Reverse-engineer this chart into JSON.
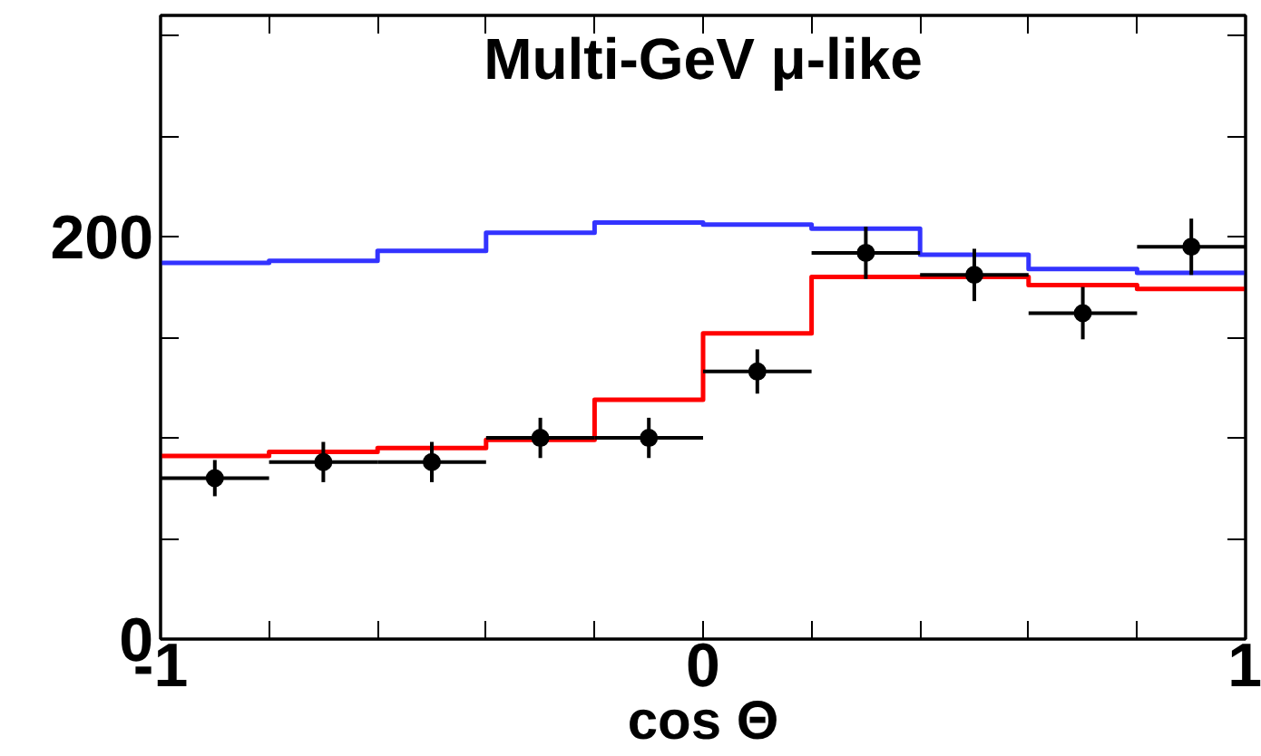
{
  "chart_data": {
    "type": "step",
    "title": "Multi-GeV μ-like",
    "xlabel": "cos Θ",
    "x": [
      -0.9,
      -0.7,
      -0.5,
      -0.3,
      -0.1,
      0.1,
      0.3,
      0.5,
      0.7,
      0.9
    ],
    "series": [
      {
        "color": "#3333ff",
        "x": [
          -1,
          -0.8,
          -0.6,
          -0.4,
          -0.2,
          0,
          0.2,
          0.4,
          0.6,
          0.8,
          1
        ],
        "values": [
          187,
          188,
          193,
          202,
          207,
          206,
          204,
          191,
          184,
          182,
          182
        ]
      },
      {
        "color": "#ff0000",
        "x": [
          -1,
          -0.8,
          -0.6,
          -0.4,
          -0.2,
          0,
          0.2,
          0.4,
          0.6,
          0.8,
          1
        ],
        "values": [
          91,
          93,
          95,
          99,
          119,
          152,
          180,
          180,
          176,
          174,
          174
        ]
      },
      {
        "type": "scatter",
        "color": "#000000",
        "marker": "circle",
        "values": [
          80,
          88,
          88,
          100,
          100,
          133,
          192,
          181,
          162,
          195
        ],
        "errors": [
          9,
          10,
          10,
          10,
          10,
          11,
          13,
          13,
          13,
          14
        ],
        "xerrors": [
          0.1,
          0.1,
          0.1,
          0.1,
          0.1,
          0.1,
          0.1,
          0.1,
          0.1,
          0.1
        ]
      }
    ],
    "xlim": [
      -1,
      1
    ],
    "ylim": [
      0,
      310
    ],
    "xticks": [
      -1,
      {
        "value": -0.8,
        "label": null
      },
      {
        "value": -0.6,
        "label": null
      },
      {
        "value": -0.4,
        "label": null
      },
      {
        "value": -0.2,
        "label": null
      },
      0,
      {
        "value": 0.2,
        "label": null
      },
      {
        "value": 0.4,
        "label": null
      },
      {
        "value": 0.6,
        "label": null
      },
      {
        "value": 0.8,
        "label": null
      },
      1
    ],
    "yticks": [
      0,
      {
        "value": 50,
        "label": null
      },
      {
        "value": 100,
        "label": null
      },
      {
        "value": 150,
        "label": null
      },
      200,
      {
        "value": 250,
        "label": null
      },
      {
        "value": 300,
        "label": null
      }
    ],
    "grid": false
  }
}
